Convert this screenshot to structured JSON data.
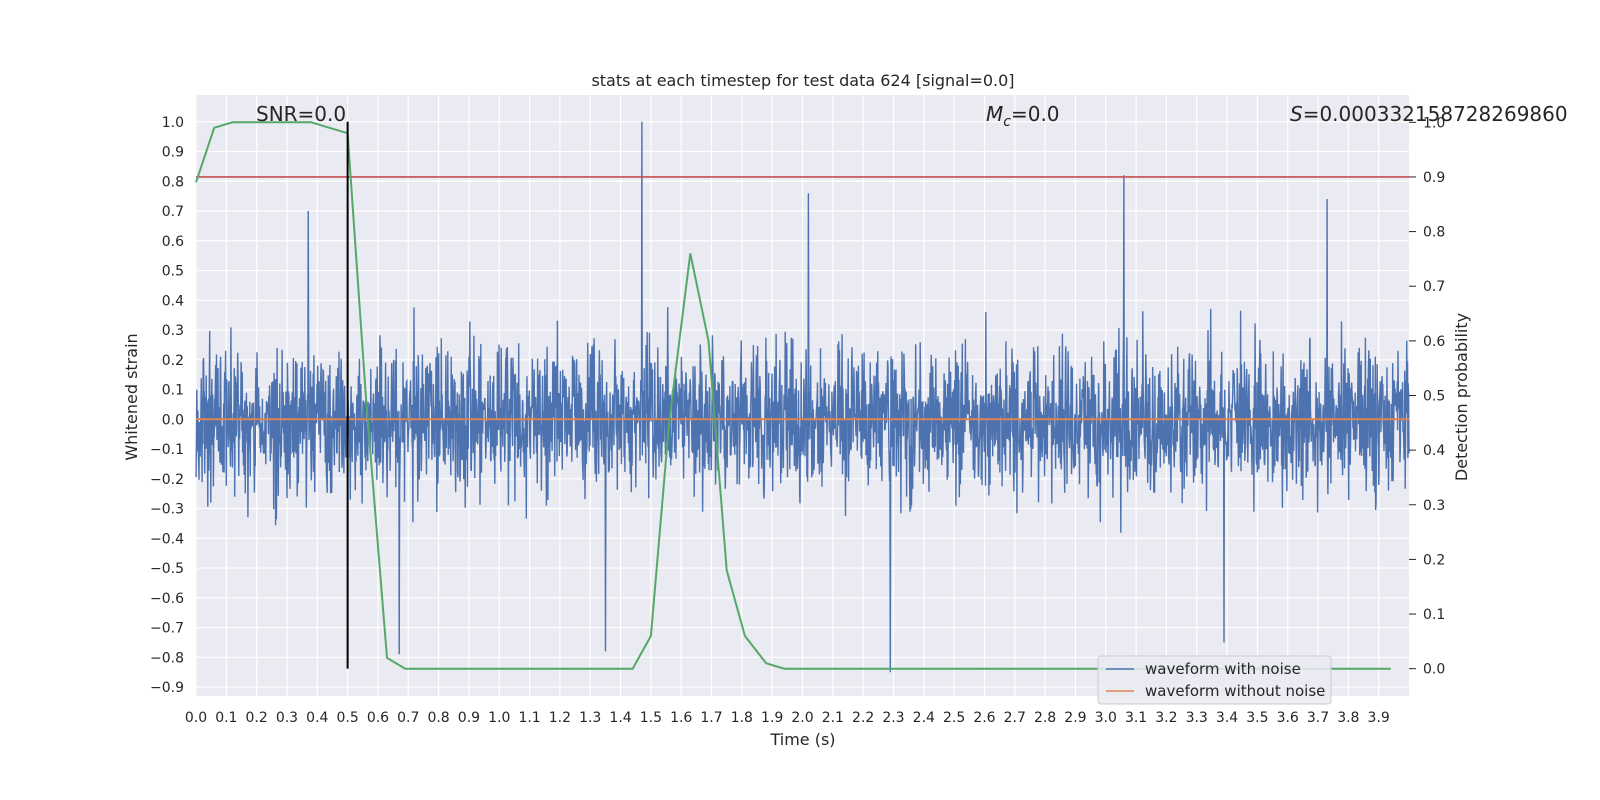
{
  "chart_data": {
    "type": "line",
    "title": "stats at each timestep for test data 624 [signal=0.0]",
    "xlabel": "Time (s)",
    "ylabel": "Whitened strain",
    "y2label": "Detection probability",
    "xlim": [
      0.0,
      4.0
    ],
    "ylim": [
      -0.93,
      1.09
    ],
    "y2lim": [
      -0.05,
      1.05
    ],
    "xticks": [
      "0.0",
      "0.1",
      "0.2",
      "0.3",
      "0.4",
      "0.5",
      "0.6",
      "0.7",
      "0.8",
      "0.9",
      "1.0",
      "1.1",
      "1.2",
      "1.3",
      "1.4",
      "1.5",
      "1.6",
      "1.7",
      "1.8",
      "1.9",
      "2.0",
      "2.1",
      "2.2",
      "2.3",
      "2.4",
      "2.5",
      "2.6",
      "2.7",
      "2.8",
      "2.9",
      "3.0",
      "3.1",
      "3.2",
      "3.3",
      "3.4",
      "3.5",
      "3.6",
      "3.7",
      "3.8",
      "3.9"
    ],
    "yticks": [
      "1.0",
      "0.9",
      "0.8",
      "0.7",
      "0.6",
      "0.5",
      "0.4",
      "0.3",
      "0.2",
      "0.1",
      "0.0",
      "-0.1",
      "-0.2",
      "-0.3",
      "-0.4",
      "-0.5",
      "-0.6",
      "-0.7",
      "-0.8",
      "-0.9"
    ],
    "y2ticks": [
      "1.0",
      "0.9",
      "0.8",
      "0.7",
      "0.6",
      "0.5",
      "0.4",
      "0.3",
      "0.2",
      "0.1",
      "0.0"
    ],
    "annotations": {
      "snr": "SNR=0.0",
      "mc": "=0.0",
      "mc_symbol": "M",
      "mc_sub": "c",
      "s": "=0.000332158728269860",
      "s_symbol": "S"
    },
    "legend": {
      "placement": "lower-right",
      "entries": [
        {
          "label": "waveform with noise",
          "color": "#4c72b0"
        },
        {
          "label": "waveform without noise",
          "color": "#dd8452"
        }
      ]
    },
    "series": [
      {
        "name": "waveform with noise",
        "color": "#4c72b0",
        "kind": "noise",
        "baseline": 0.0,
        "noise_amplitude": 0.2,
        "spikes": [
          {
            "x": 1.47,
            "y": 1.0
          },
          {
            "x": 2.29,
            "y": -0.85
          },
          {
            "x": 3.06,
            "y": 0.82
          },
          {
            "x": 0.67,
            "y": -0.79
          },
          {
            "x": 1.35,
            "y": -0.78
          },
          {
            "x": 0.37,
            "y": 0.7
          },
          {
            "x": 2.02,
            "y": 0.76
          },
          {
            "x": 3.73,
            "y": 0.74
          },
          {
            "x": 3.39,
            "y": -0.75
          }
        ]
      },
      {
        "name": "waveform without noise",
        "color": "#dd8452",
        "x": [
          0.0,
          4.0
        ],
        "y": [
          0.0,
          0.0
        ]
      }
    ],
    "detection_probability": {
      "color": "#55a868",
      "x": [
        0.0,
        0.06,
        0.12,
        0.18,
        0.25,
        0.31,
        0.38,
        0.44,
        0.5,
        0.56,
        0.63,
        0.69,
        0.75,
        0.81,
        0.88,
        0.94,
        1.0,
        1.06,
        1.13,
        1.19,
        1.25,
        1.31,
        1.38,
        1.44,
        1.5,
        1.56,
        1.63,
        1.69,
        1.75,
        1.81,
        1.88,
        1.94,
        2.0,
        2.06,
        2.13,
        2.19,
        2.25,
        2.31,
        2.38,
        2.44,
        2.5,
        2.56,
        2.63,
        2.69,
        2.75,
        2.81,
        2.88,
        2.94,
        3.0,
        3.06,
        3.13,
        3.19,
        3.25,
        3.31,
        3.38,
        3.44,
        3.5,
        3.56,
        3.63,
        3.69,
        3.75,
        3.81,
        3.88,
        3.94
      ],
      "y": [
        0.89,
        0.99,
        1.0,
        1.0,
        1.0,
        1.0,
        1.0,
        0.99,
        0.98,
        0.5,
        0.02,
        0.0,
        0.0,
        0.0,
        0.0,
        0.0,
        0.0,
        0.0,
        0.0,
        0.0,
        0.0,
        0.0,
        0.0,
        0.0,
        0.06,
        0.45,
        0.76,
        0.6,
        0.18,
        0.06,
        0.01,
        0.0,
        0.0,
        0.0,
        0.0,
        0.0,
        0.0,
        0.0,
        0.0,
        0.0,
        0.0,
        0.0,
        0.0,
        0.0,
        0.0,
        0.0,
        0.0,
        0.0,
        0.0,
        0.0,
        0.0,
        0.0,
        0.0,
        0.0,
        0.0,
        0.0,
        0.0,
        0.0,
        0.0,
        0.0,
        0.0,
        0.0,
        0.0,
        0.0
      ]
    },
    "threshold": {
      "y2": 0.9,
      "color": "#c44e52"
    },
    "marker": {
      "x": 0.5,
      "color": "#000000"
    },
    "grid": true
  }
}
